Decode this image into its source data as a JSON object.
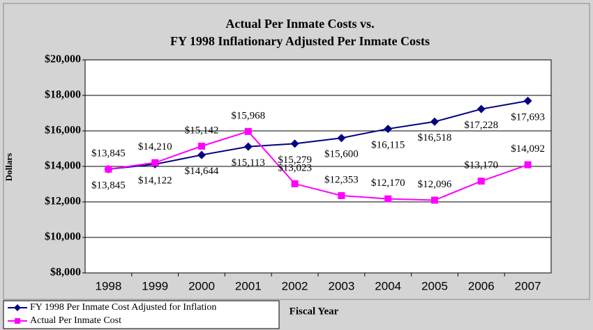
{
  "chart_data": {
    "type": "line",
    "title": [
      "Actual Per Inmate Costs vs.",
      "FY 1998 Inflationary Adjusted Per Inmate Costs"
    ],
    "x_label": "Fiscal Year",
    "y_label": "Dollars",
    "categories": [
      "1998",
      "1999",
      "2000",
      "2001",
      "2002",
      "2003",
      "2004",
      "2005",
      "2006",
      "2007"
    ],
    "series": [
      {
        "name": "FY 1998 Per Inmate Cost Adjusted for Inflation",
        "color": "#000080",
        "marker": "diamond",
        "values": [
          13845,
          14122,
          14644,
          15113,
          15279,
          15600,
          16115,
          16518,
          17228,
          17693
        ],
        "value_labels": [
          "$13,845",
          "$14,122",
          "$14,644",
          "$15,113",
          "$15,279",
          "$15,600",
          "$16,115",
          "$16,518",
          "$17,228",
          "$17,693"
        ]
      },
      {
        "name": "Actual Per Inmate Cost",
        "color": "#ff00ff",
        "marker": "square",
        "values": [
          13845,
          14210,
          15142,
          15968,
          13023,
          12353,
          12170,
          12096,
          13170,
          14092
        ],
        "value_labels": [
          "$13,845",
          "$14,210",
          "$15,142",
          "$15,968",
          "$13,023",
          "$12,353",
          "$12,170",
          "$12,096",
          "$13,170",
          "$14,092"
        ]
      }
    ],
    "ylim": [
      8000,
      20000
    ],
    "yticks": [
      {
        "value": 8000,
        "label": "$8,000"
      },
      {
        "value": 10000,
        "label": "$10,000"
      },
      {
        "value": 12000,
        "label": "$12,000"
      },
      {
        "value": 14000,
        "label": "$14,000"
      },
      {
        "value": 16000,
        "label": "$16,000"
      },
      {
        "value": 18000,
        "label": "$18,000"
      },
      {
        "value": 20000,
        "label": "$20,000"
      }
    ],
    "grid": true,
    "legend": "bottom-left"
  }
}
